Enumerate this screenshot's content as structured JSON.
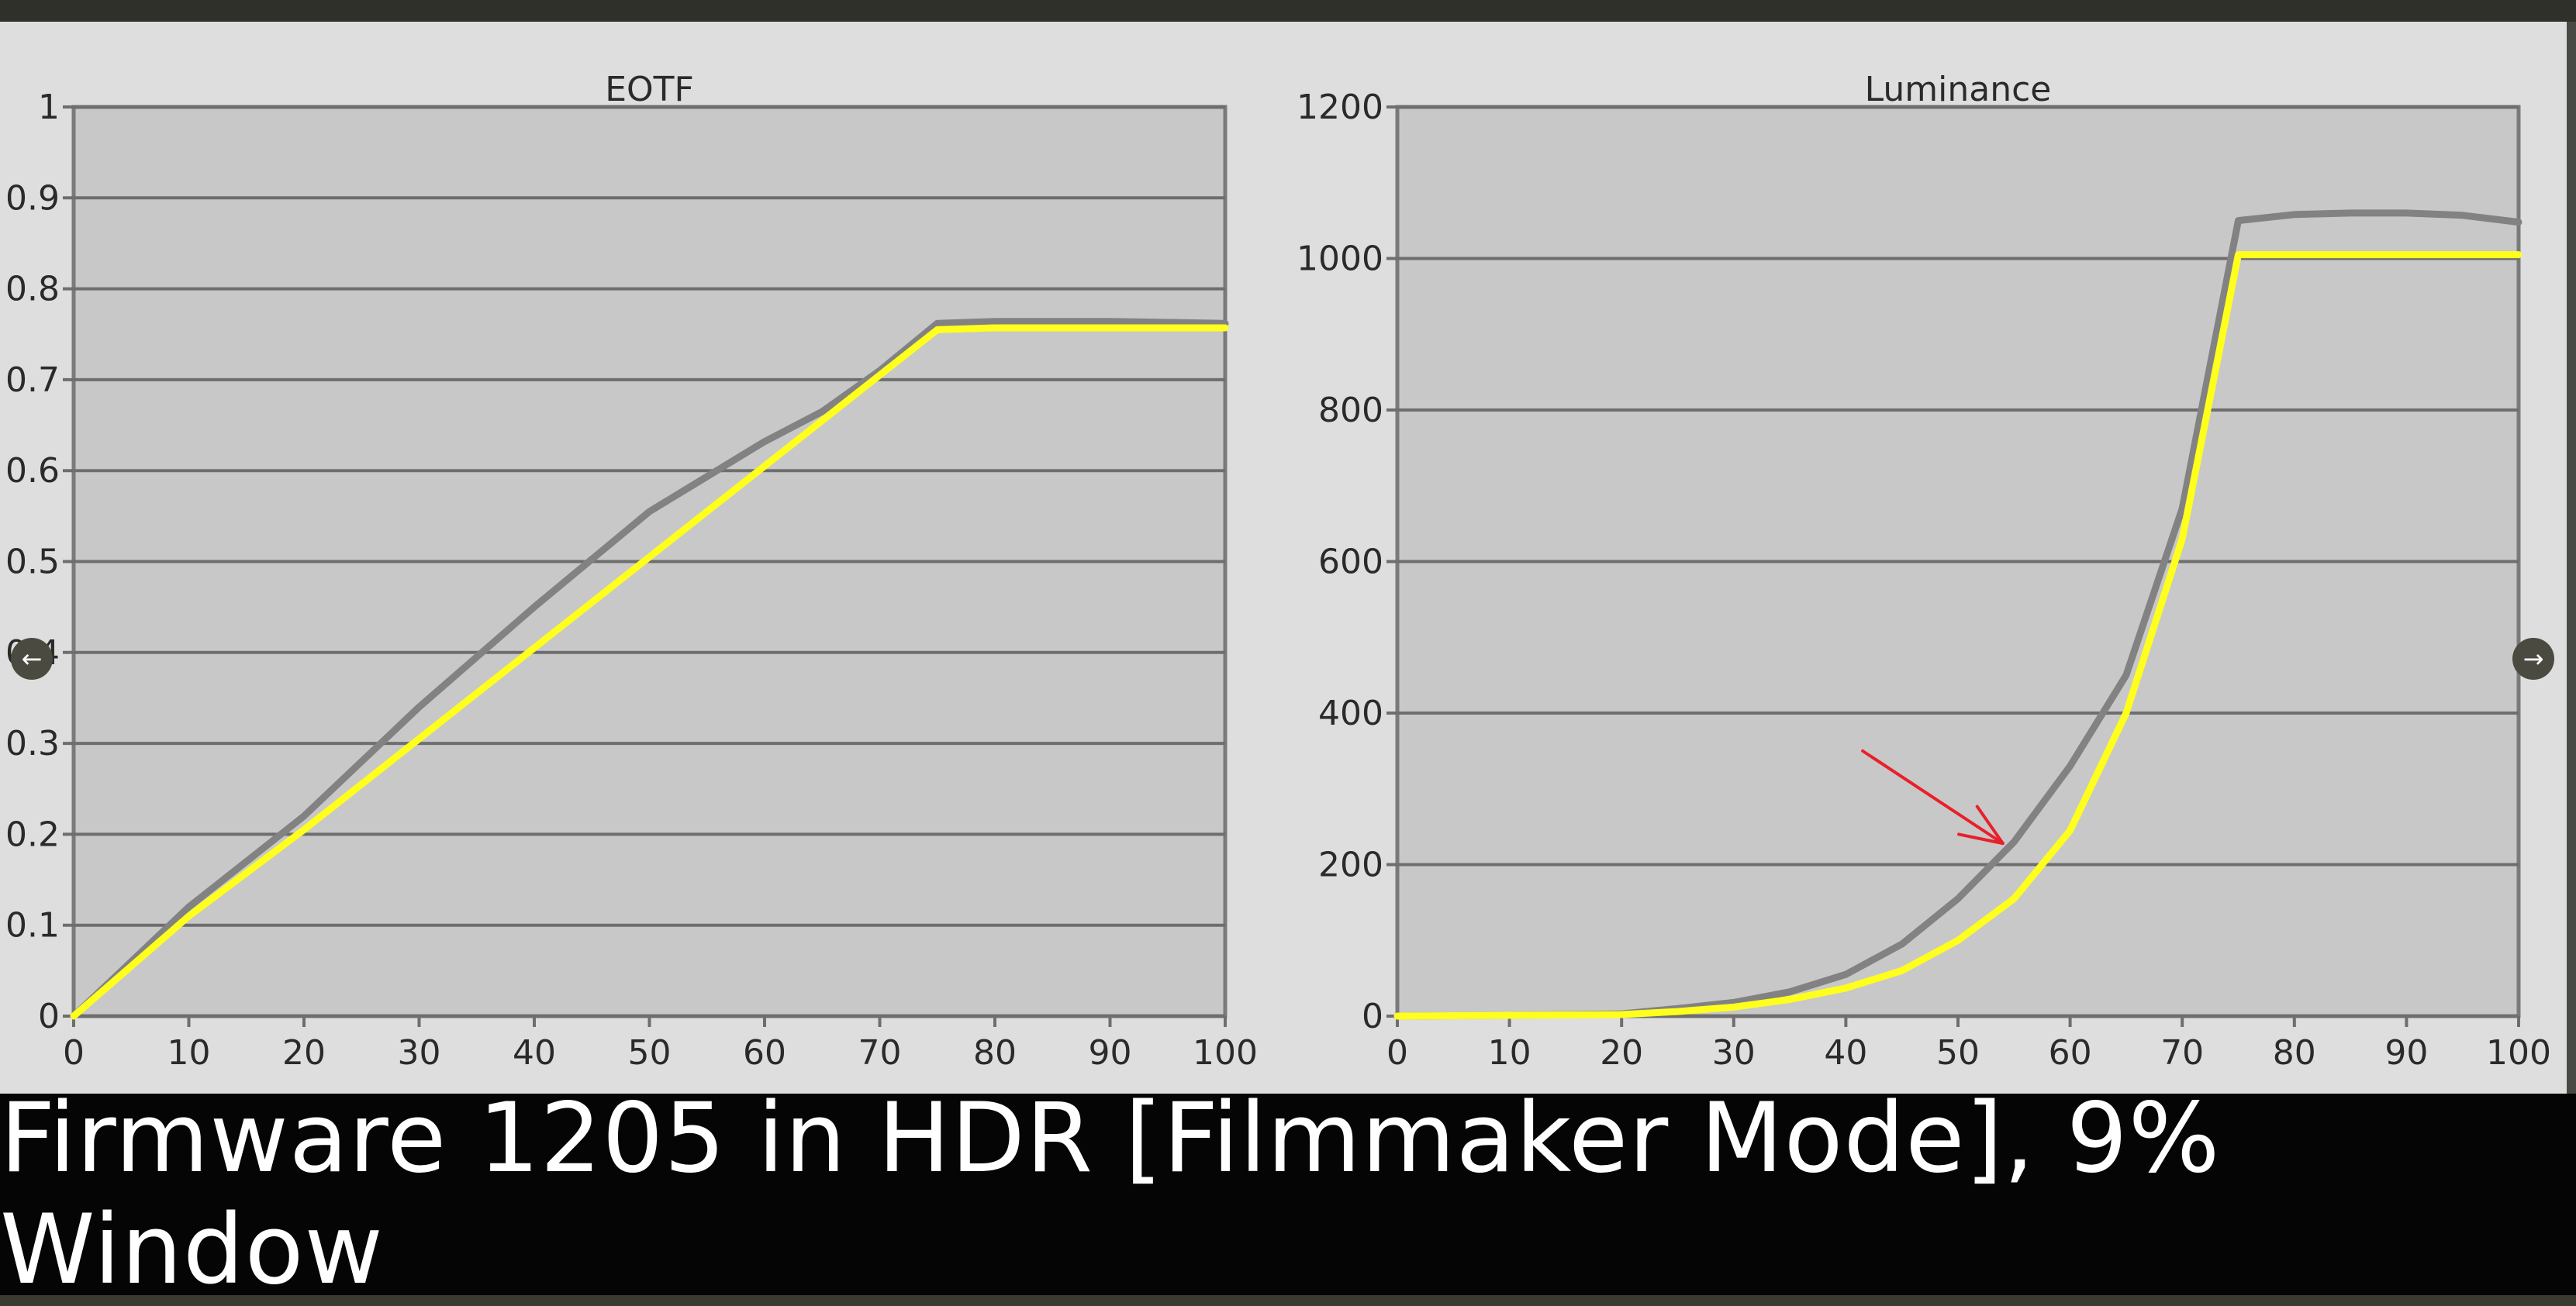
{
  "caption": "Firmware 1205 in HDR [Filmmaker Mode], 9% Window",
  "nav": {
    "prev_icon": "←",
    "next_icon": "→"
  },
  "colors": {
    "plot_bg": "#c8c8c8",
    "grid": "#6e6e6e",
    "target_line": "#828282",
    "measured_line": "#ffff1e",
    "annotation_arrow": "#e8202a",
    "text": "#2a2a2a"
  },
  "chart_data": [
    {
      "type": "line",
      "title": "EOTF",
      "xlabel": "",
      "ylabel": "",
      "xlim": [
        0,
        100
      ],
      "ylim": [
        0,
        1
      ],
      "xticks": [
        "0",
        "10",
        "20",
        "30",
        "40",
        "50",
        "60",
        "70",
        "80",
        "90",
        "100"
      ],
      "yticks": [
        "0",
        "0.1",
        "0.2",
        "0.3",
        "0.4",
        "0.5",
        "0.6",
        "0.7",
        "0.8",
        "0.9",
        "1"
      ],
      "grid": true,
      "series": [
        {
          "role": "target",
          "color": "#828282",
          "x": [
            0,
            5,
            10,
            20,
            30,
            40,
            50,
            60,
            65,
            70,
            75,
            80,
            90,
            100
          ],
          "y": [
            0,
            0.06,
            0.12,
            0.22,
            0.34,
            0.45,
            0.555,
            0.632,
            0.665,
            0.71,
            0.762,
            0.764,
            0.764,
            0.762
          ]
        },
        {
          "role": "measured",
          "color": "#ffff1e",
          "x": [
            0,
            5,
            10,
            20,
            30,
            40,
            50,
            60,
            70,
            75,
            80,
            90,
            100
          ],
          "y": [
            0,
            0.055,
            0.11,
            0.205,
            0.305,
            0.405,
            0.505,
            0.605,
            0.705,
            0.755,
            0.757,
            0.757,
            0.757
          ]
        }
      ]
    },
    {
      "type": "line",
      "title": "Luminance",
      "xlabel": "",
      "ylabel": "",
      "xlim": [
        0,
        100
      ],
      "ylim": [
        0,
        1200
      ],
      "xticks": [
        "0",
        "10",
        "20",
        "30",
        "40",
        "50",
        "60",
        "70",
        "80",
        "90",
        "100"
      ],
      "yticks": [
        "0",
        "200",
        "400",
        "600",
        "800",
        "1000",
        "1200"
      ],
      "grid": true,
      "series": [
        {
          "role": "target",
          "color": "#828282",
          "x": [
            0,
            10,
            20,
            25,
            30,
            35,
            40,
            45,
            50,
            55,
            60,
            65,
            70,
            75,
            80,
            85,
            90,
            95,
            100
          ],
          "y": [
            0,
            1,
            3,
            10,
            18,
            32,
            55,
            95,
            155,
            230,
            330,
            450,
            670,
            1050,
            1058,
            1060,
            1060,
            1057,
            1048
          ]
        },
        {
          "role": "measured",
          "color": "#ffff1e",
          "x": [
            0,
            10,
            20,
            25,
            30,
            35,
            40,
            45,
            50,
            55,
            60,
            65,
            70,
            75,
            80,
            90,
            100
          ],
          "y": [
            0,
            1,
            2,
            6,
            12,
            22,
            37,
            60,
            100,
            155,
            245,
            400,
            630,
            1005,
            1005,
            1005,
            1005
          ]
        }
      ],
      "annotation": {
        "type": "arrow",
        "color": "#e8202a",
        "from": [
          41.5,
          350
        ],
        "to": [
          54,
          228
        ]
      }
    }
  ]
}
